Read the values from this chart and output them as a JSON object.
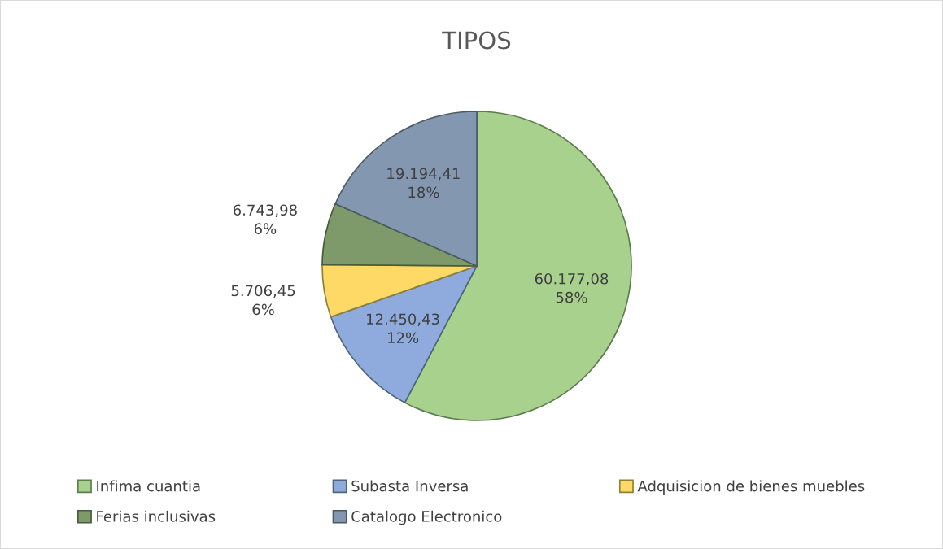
{
  "chart_data": {
    "type": "pie",
    "title": "TIPOS",
    "categories": [
      "Infima cuantia",
      "Subasta Inversa",
      "Adquisicion de bienes muebles",
      "Ferias inclusivas",
      "Catalogo Electronico"
    ],
    "values": [
      60177.08,
      12450.43,
      5706.45,
      6743.98,
      19194.41
    ],
    "value_labels": [
      "60.177,08\n58%",
      "12.450,43\n12%",
      "5.706,45\n6%",
      "6.743,98\n6%",
      "19.194,41\n18%"
    ],
    "colors": [
      "#a9d18e",
      "#8faadc",
      "#ffd966",
      "#7f9a6a",
      "#8497b0"
    ],
    "legend": "bottom"
  }
}
